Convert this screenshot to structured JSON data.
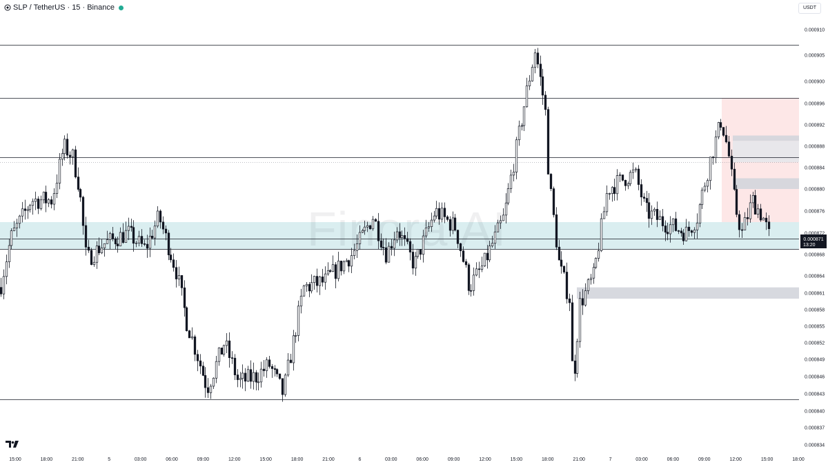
{
  "header": {
    "title": "SLP / TetherUS · 15 · Binance",
    "status_color": "#22ab94"
  },
  "price_axis": {
    "unit_label": "USDT"
  },
  "watermark": {
    "text": "Finora AI"
  },
  "logo_icon": "tradingview-logo-icon",
  "current_price": {
    "value": "0.000871",
    "countdown": "13:20"
  },
  "chart_data": {
    "type": "candlestick",
    "y_ticks": [
      0.00091,
      0.000905,
      0.0009,
      0.000896,
      0.000892,
      0.000888,
      0.000884,
      0.00088,
      0.000876,
      0.000872,
      0.000868,
      0.000864,
      0.000861,
      0.000858,
      0.000855,
      0.000852,
      0.000849,
      0.000846,
      0.000843,
      0.00084,
      0.000837,
      0.000834
    ],
    "y_tick_labels": [
      "0.000910",
      "0.000905",
      "0.000900",
      "0.000896",
      "0.000892",
      "0.000888",
      "0.000884",
      "0.000880",
      "0.000876",
      "0.000872",
      "0.000868",
      "0.000864",
      "0.000861",
      "0.000858",
      "0.000855",
      "0.000852",
      "0.000849",
      "0.000846",
      "0.000843",
      "0.000840",
      "0.000837",
      "0.000834"
    ],
    "x_tick_labels": [
      "15:00",
      "18:00",
      "21:00",
      "5",
      "03:00",
      "06:00",
      "09:00",
      "12:00",
      "15:00",
      "18:00",
      "21:00",
      "6",
      "03:00",
      "06:00",
      "09:00",
      "12:00",
      "15:00",
      "18:00",
      "21:00",
      "7",
      "03:00",
      "06:00",
      "09:00",
      "12:00",
      "15:00",
      "18:00"
    ],
    "horizontal_lines": [
      0.000907,
      0.000897,
      0.000886,
      0.000871,
      0.000869,
      0.000842
    ],
    "dotted_line": 0.000885,
    "zones": [
      {
        "kind": "demand",
        "top": 0.000874,
        "bottom": 0.000869,
        "color": "#d6ecee"
      },
      {
        "kind": "supply",
        "top": 0.000897,
        "bottom": 0.000874,
        "color": "#fde4e4"
      },
      {
        "kind": "level",
        "top": 0.00089,
        "bottom": 0.000889,
        "color": "#d3d5db"
      },
      {
        "kind": "level",
        "top": 0.000889,
        "bottom": 0.000885,
        "color": "#e6e7eb"
      },
      {
        "kind": "level",
        "top": 0.000882,
        "bottom": 0.00088,
        "color": "#d3d5db"
      },
      {
        "kind": "level",
        "top": 0.000862,
        "bottom": 0.00086,
        "color": "#d3d5db"
      }
    ],
    "keypoints": [
      [
        0,
        0.000862
      ],
      [
        15,
        0.000871
      ],
      [
        45,
        0.000878
      ],
      [
        75,
        0.000878
      ],
      [
        92,
        0.000888
      ],
      [
        105,
        0.000886
      ],
      [
        115,
        0.00088
      ],
      [
        125,
        0.000867
      ],
      [
        150,
        0.00087
      ],
      [
        185,
        0.000872
      ],
      [
        210,
        0.000869
      ],
      [
        230,
        0.000875
      ],
      [
        255,
        0.000865
      ],
      [
        270,
        0.000856
      ],
      [
        290,
        0.000848
      ],
      [
        300,
        0.000844
      ],
      [
        325,
        0.000852
      ],
      [
        345,
        0.000845
      ],
      [
        370,
        0.000846
      ],
      [
        390,
        0.000848
      ],
      [
        410,
        0.000843
      ],
      [
        440,
        0.000862
      ],
      [
        470,
        0.000863
      ],
      [
        510,
        0.000868
      ],
      [
        540,
        0.000875
      ],
      [
        560,
        0.000868
      ],
      [
        575,
        0.000873
      ],
      [
        600,
        0.000866
      ],
      [
        630,
        0.000876
      ],
      [
        660,
        0.000873
      ],
      [
        680,
        0.000862
      ],
      [
        700,
        0.000866
      ],
      [
        730,
        0.000875
      ],
      [
        760,
        0.000896
      ],
      [
        775,
        0.000906
      ],
      [
        790,
        0.000895
      ],
      [
        795,
        0.000882
      ],
      [
        810,
        0.000866
      ],
      [
        825,
        0.00086
      ],
      [
        830,
        0.000844
      ],
      [
        840,
        0.000859
      ],
      [
        860,
        0.000864
      ],
      [
        880,
        0.00088
      ],
      [
        905,
        0.000882
      ],
      [
        920,
        0.000883
      ],
      [
        935,
        0.000876
      ],
      [
        960,
        0.000874
      ],
      [
        995,
        0.000872
      ],
      [
        1010,
        0.000875
      ],
      [
        1030,
        0.000886
      ],
      [
        1045,
        0.000893
      ],
      [
        1055,
        0.000887
      ],
      [
        1065,
        0.000877
      ],
      [
        1075,
        0.000872
      ],
      [
        1090,
        0.000878
      ],
      [
        1105,
        0.000875
      ],
      [
        1115,
        0.000871
      ]
    ]
  }
}
